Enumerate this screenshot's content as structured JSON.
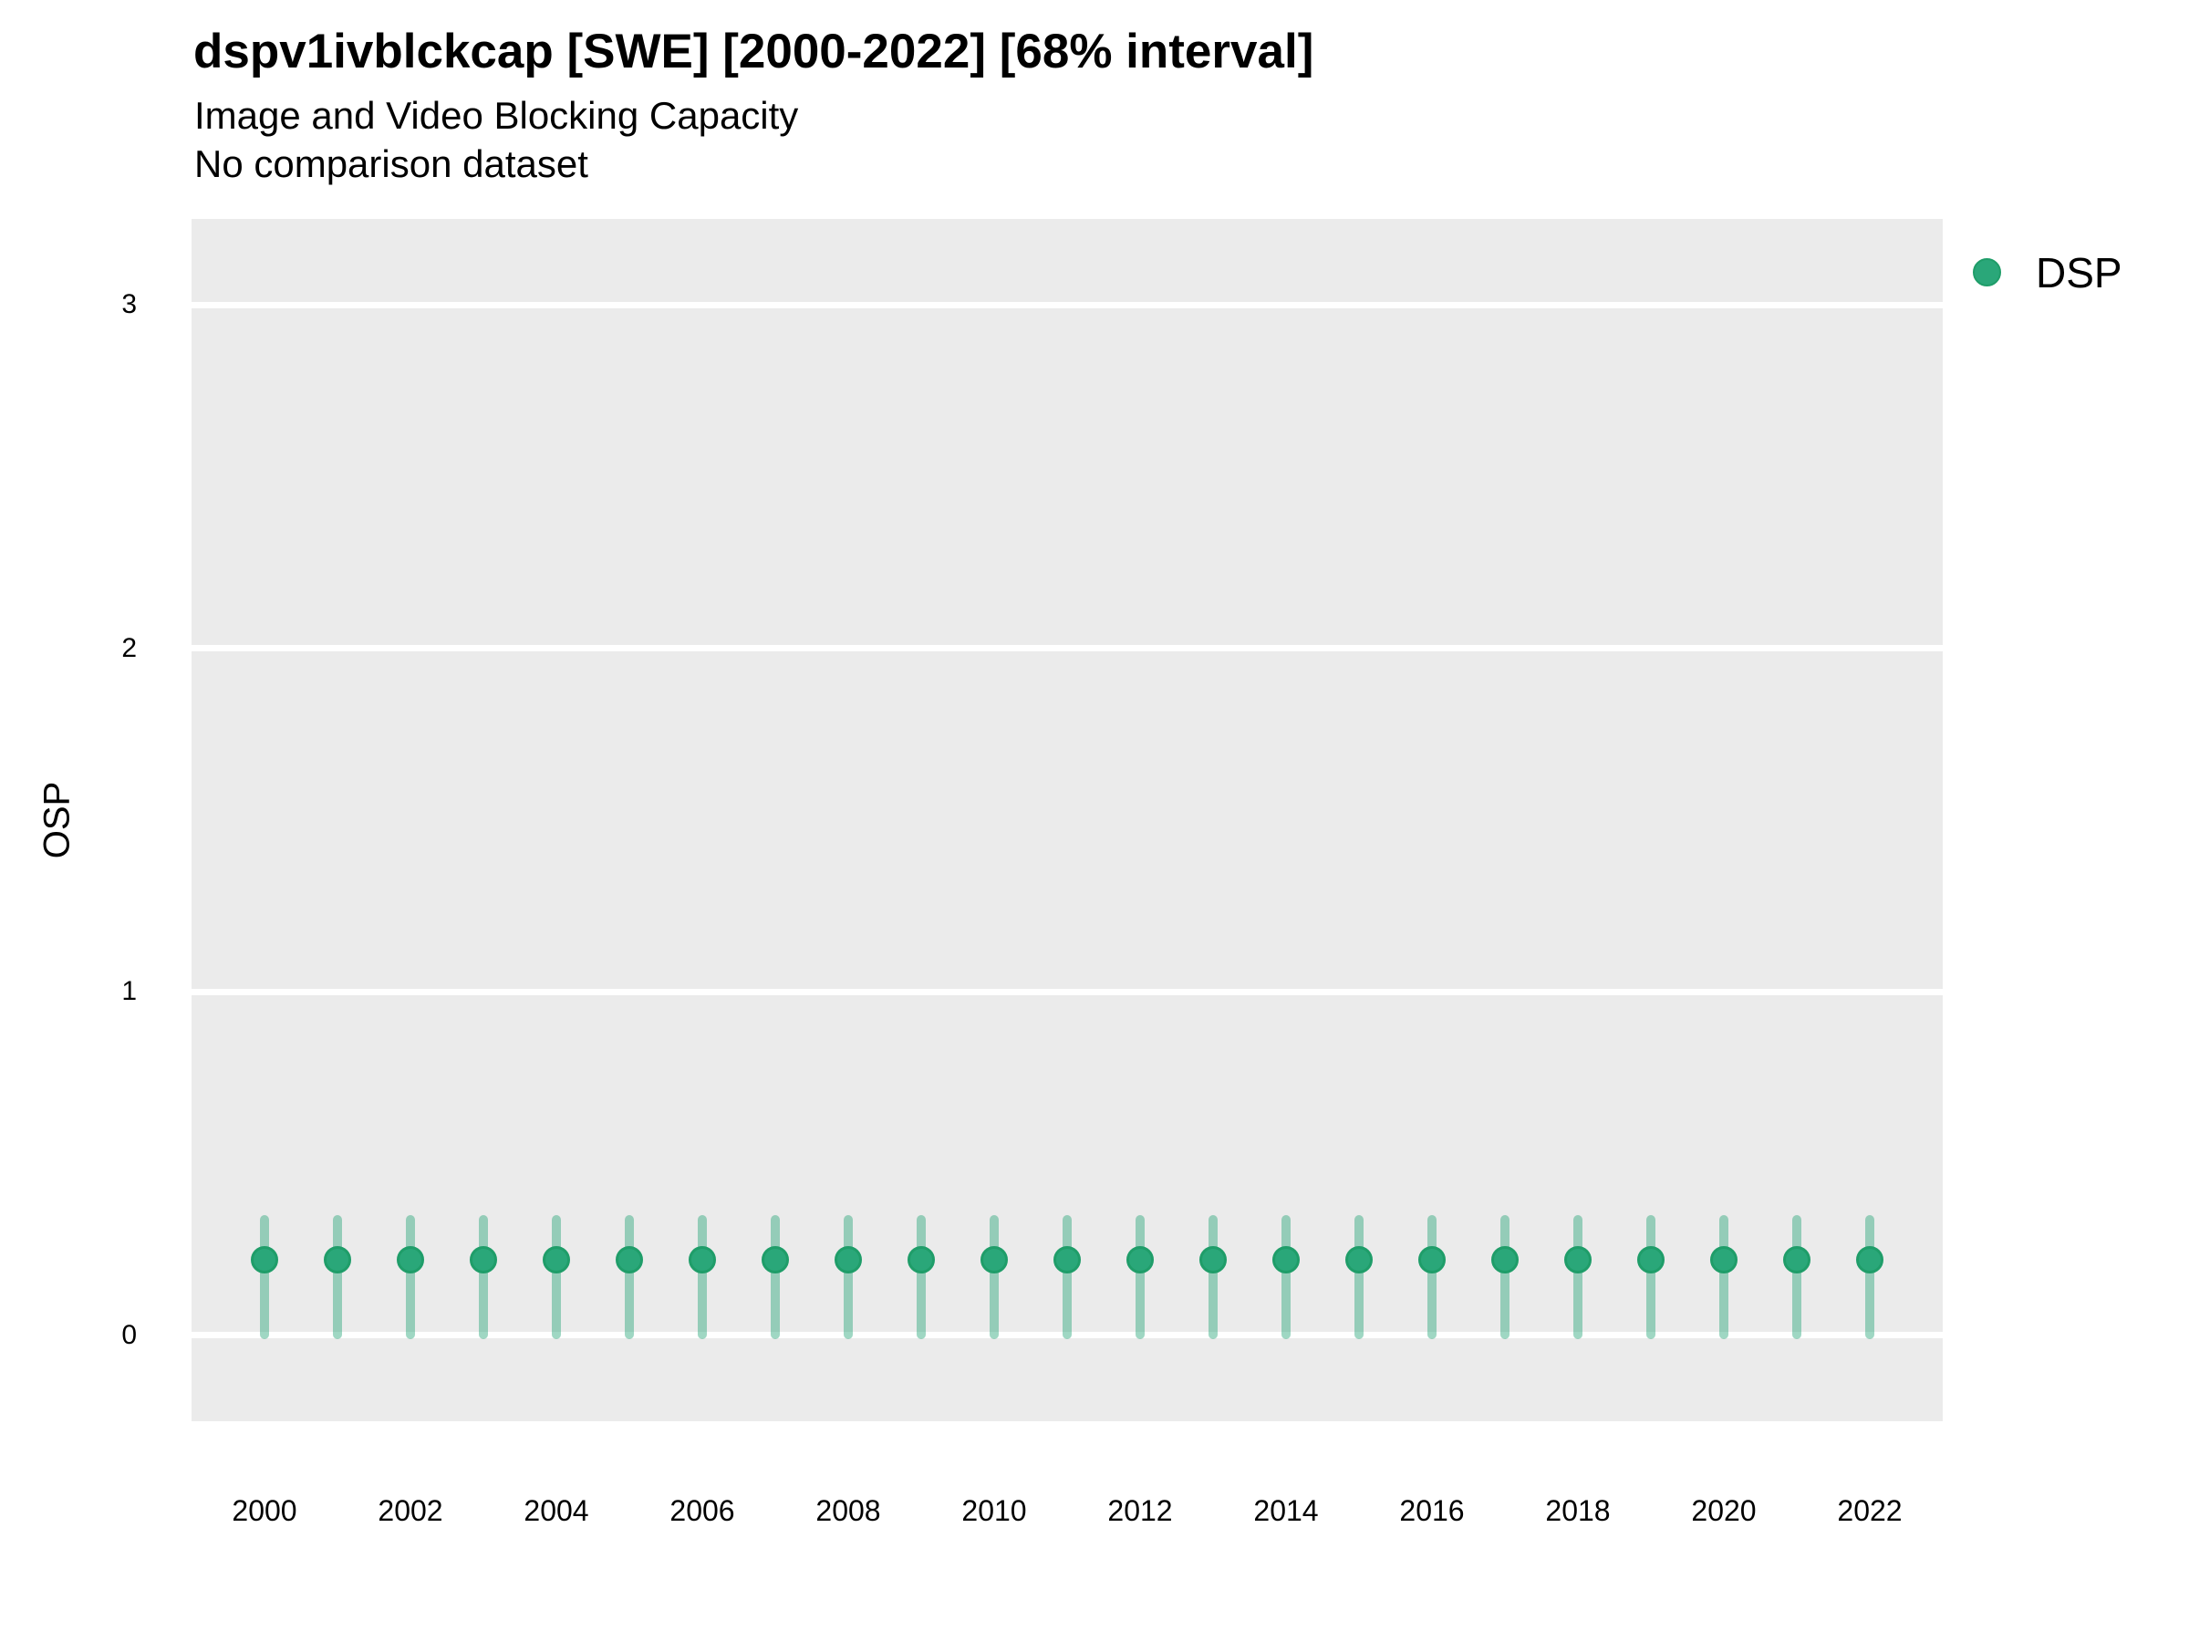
{
  "header": {
    "title": "dspv1ivblckcap [SWE] [2000-2022] [68% interval]",
    "subtitle": "Image and Video Blocking Capacity",
    "note": "No comparison dataset"
  },
  "axes": {
    "ylabel": "OSP",
    "xlabel": ""
  },
  "legend": {
    "position": "right-top",
    "items": [
      {
        "label": "DSP",
        "color": "#2aa779"
      }
    ]
  },
  "colors": {
    "panel_background": "#ebebeb",
    "grid": "#ffffff",
    "point_fill": "#2aa779",
    "point_stroke": "#1f9d69",
    "interval_bar": "rgba(42,167,121,0.45)",
    "text": "#000000"
  },
  "chart_data": {
    "type": "scatter",
    "subtype": "pointrange-errorbar",
    "title": "dspv1ivblckcap [SWE] [2000-2022] [68% interval]",
    "subtitle": "Image and Video Blocking Capacity",
    "annotation": "No comparison dataset",
    "interval_level": "68%",
    "xlabel": "",
    "ylabel": "OSP",
    "x": [
      2000,
      2001,
      2002,
      2003,
      2004,
      2005,
      2006,
      2007,
      2008,
      2009,
      2010,
      2011,
      2012,
      2013,
      2014,
      2015,
      2016,
      2017,
      2018,
      2019,
      2020,
      2021,
      2022
    ],
    "series": [
      {
        "name": "DSP",
        "color": "#2aa779",
        "values": [
          0.22,
          0.22,
          0.22,
          0.22,
          0.22,
          0.22,
          0.22,
          0.22,
          0.22,
          0.22,
          0.22,
          0.22,
          0.22,
          0.22,
          0.22,
          0.22,
          0.22,
          0.22,
          0.22,
          0.22,
          0.22,
          0.22,
          0.22
        ],
        "lo": [
          -0.01,
          -0.01,
          -0.01,
          -0.01,
          -0.01,
          -0.01,
          -0.01,
          -0.01,
          -0.01,
          -0.01,
          -0.01,
          -0.01,
          -0.01,
          -0.01,
          -0.01,
          -0.01,
          -0.01,
          -0.01,
          -0.01,
          -0.01,
          -0.01,
          -0.01,
          -0.01
        ],
        "hi": [
          0.35,
          0.35,
          0.35,
          0.35,
          0.35,
          0.35,
          0.35,
          0.35,
          0.35,
          0.35,
          0.35,
          0.35,
          0.35,
          0.35,
          0.35,
          0.35,
          0.35,
          0.35,
          0.35,
          0.35,
          0.35,
          0.35,
          0.35
        ]
      }
    ],
    "xlim": [
      1999,
      2023
    ],
    "ylim": [
      -0.25,
      3.25
    ],
    "xticks": [
      2000,
      2002,
      2004,
      2006,
      2008,
      2010,
      2012,
      2014,
      2016,
      2018,
      2020,
      2022
    ],
    "yticks": [
      0,
      1,
      2,
      3
    ],
    "grid": {
      "horizontal": true,
      "vertical": false
    },
    "legend_position": "right-top"
  }
}
